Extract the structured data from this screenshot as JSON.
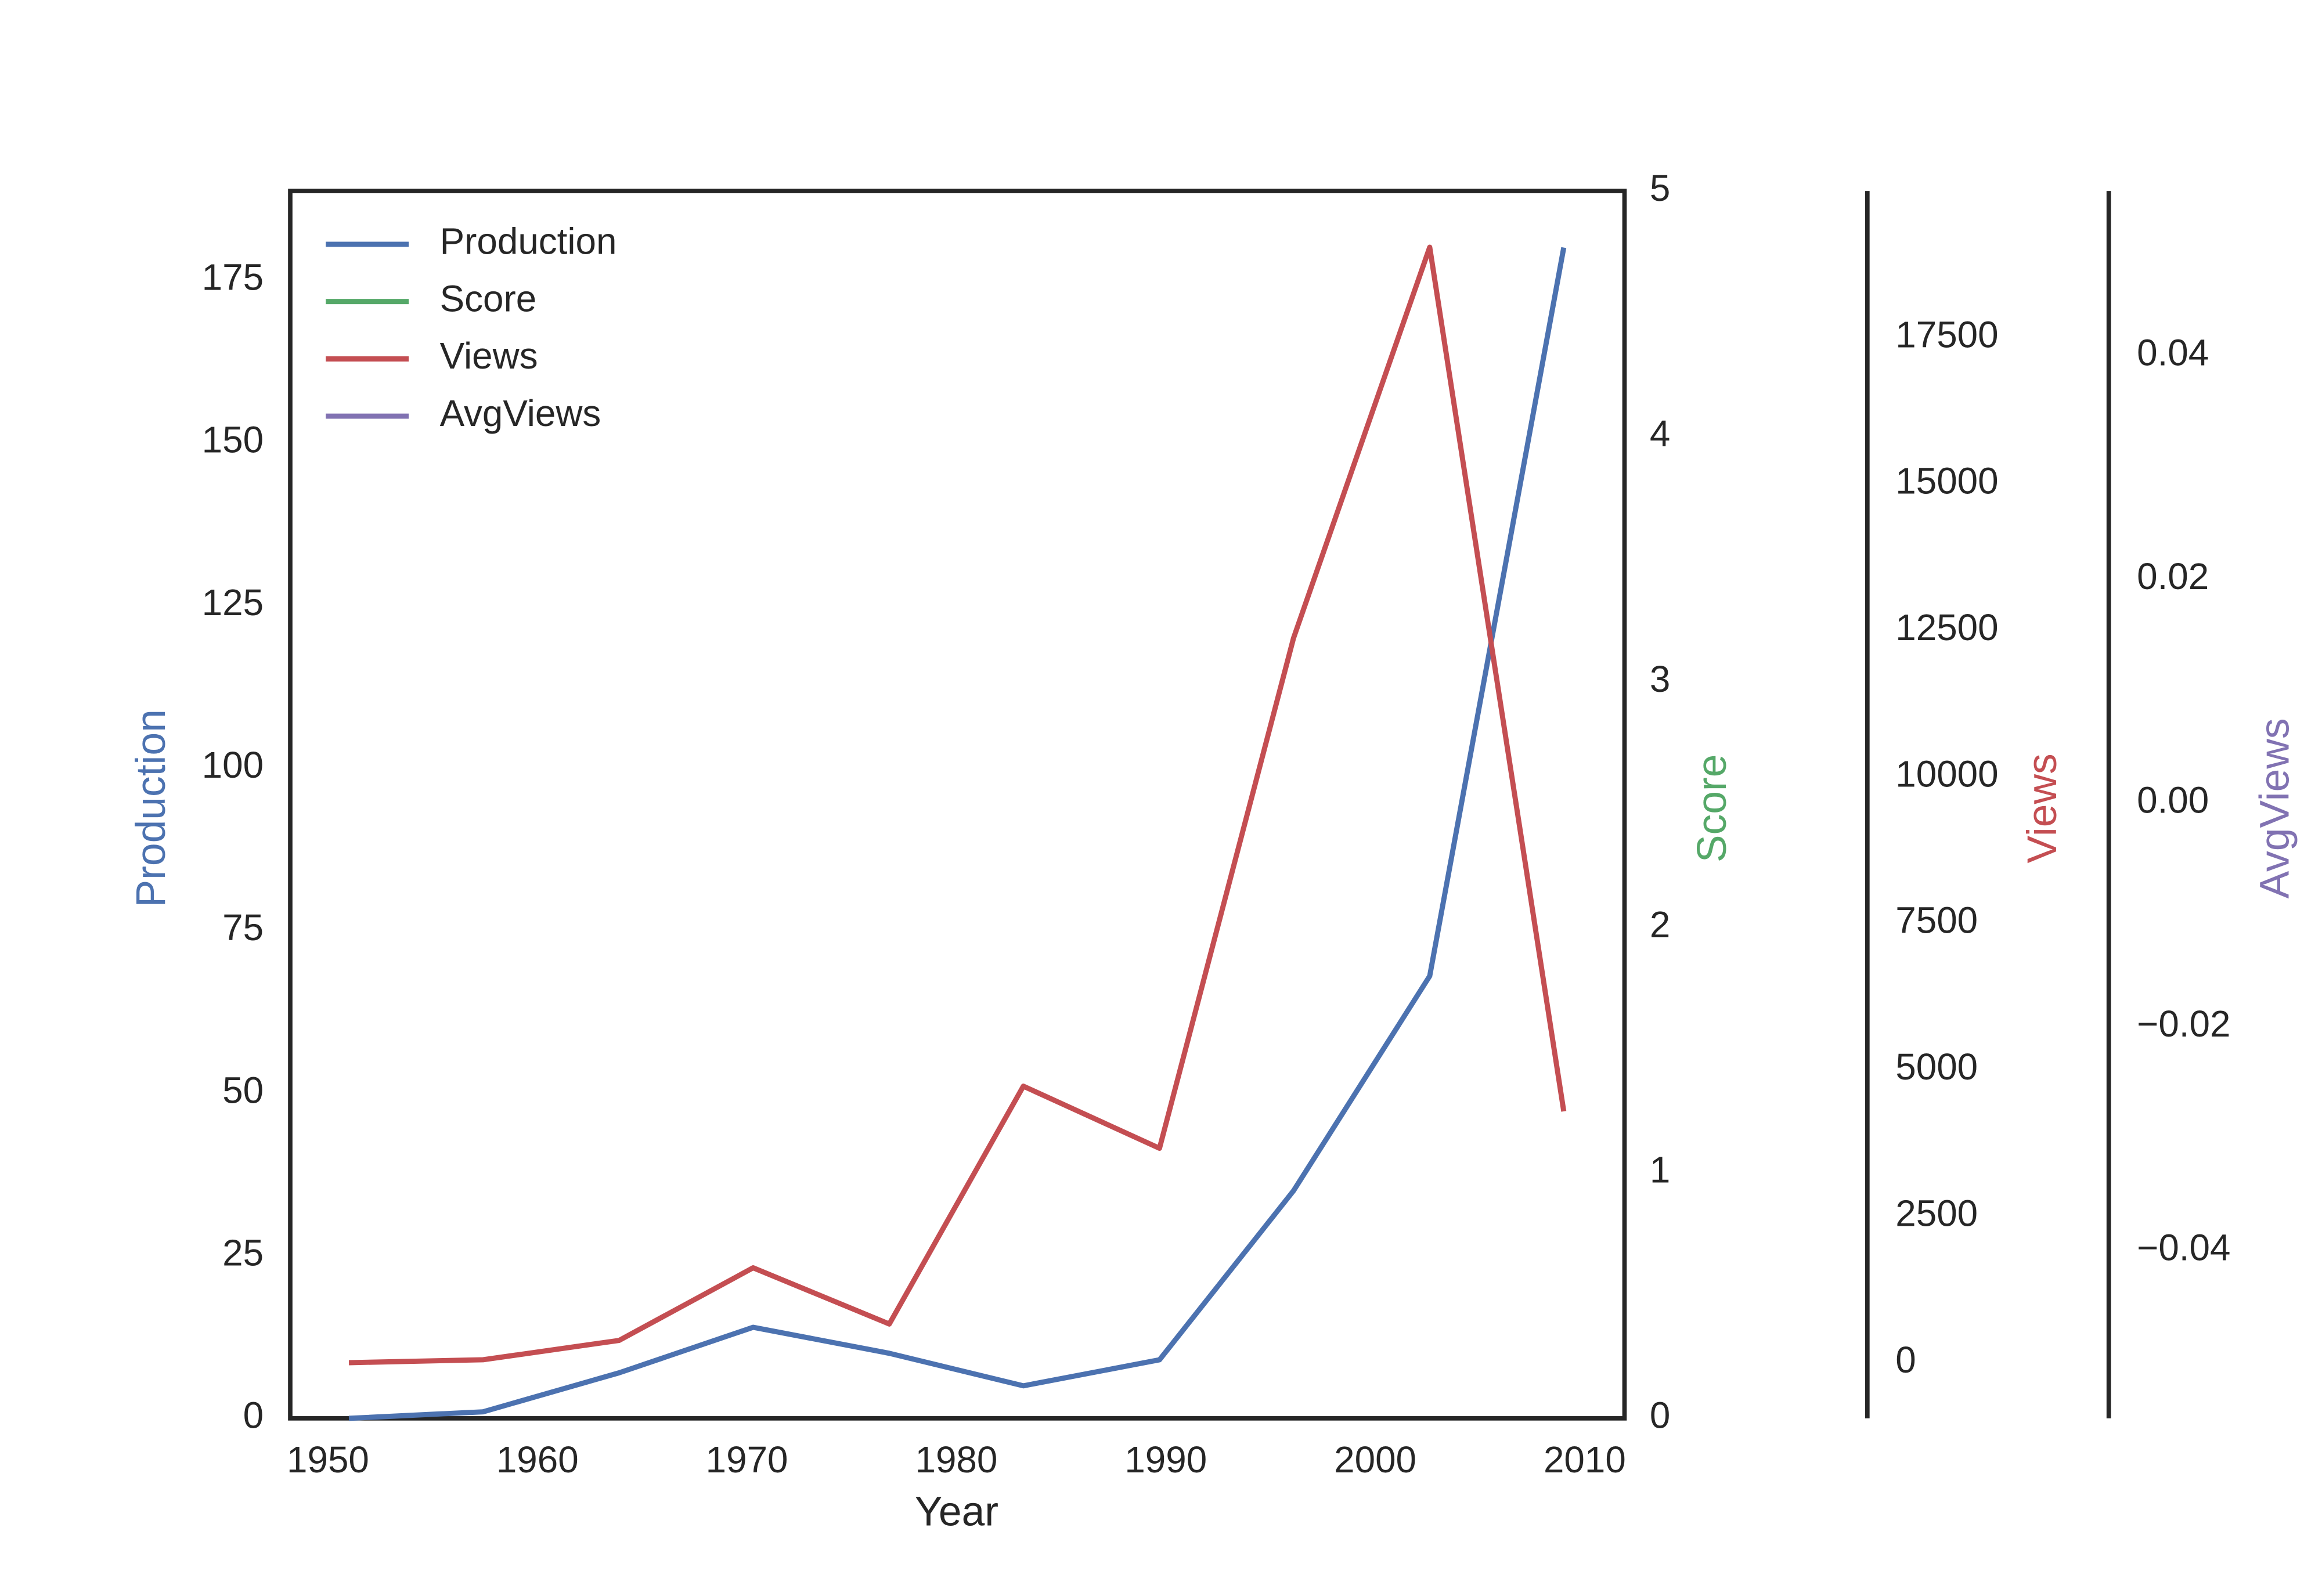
{
  "chart_data": {
    "type": "line",
    "xlabel": "Year",
    "ylabel": "Production",
    "y2label": "Score",
    "y3label": "Views",
    "y4label": "AvgViews",
    "x": [
      1951,
      1957.4,
      1963.9,
      1970.3,
      1976.8,
      1983.2,
      1989.7,
      1996.1,
      2002.6,
      2009
    ],
    "series": [
      {
        "name": "Production",
        "color": "#4c72b0",
        "axis": "y",
        "values": [
          0,
          1,
          7,
          14,
          10,
          5,
          9,
          35,
          68,
          180
        ]
      },
      {
        "name": "Score",
        "color": "#55a868",
        "axis": "y2",
        "values": [
          null,
          null,
          null,
          null,
          null,
          null,
          null,
          null,
          null,
          null
        ]
      },
      {
        "name": "Views",
        "color": "#c44e52",
        "axis": "y3",
        "values": [
          0,
          50,
          380,
          1620,
          660,
          4720,
          3660,
          12370,
          19040,
          4290
        ]
      },
      {
        "name": "AvgViews",
        "color": "#8172b2",
        "axis": "y4",
        "values": [
          null,
          null,
          null,
          null,
          null,
          null,
          null,
          null,
          null,
          null
        ]
      }
    ],
    "xlim": [
      1948.2,
      2011.9
    ],
    "xticks": [
      1950,
      1960,
      1970,
      1980,
      1990,
      2000,
      2010
    ],
    "ylim": [
      0,
      188.7
    ],
    "yticks": [
      0,
      25,
      50,
      75,
      100,
      125,
      150,
      175
    ],
    "y2lim": [
      0,
      5
    ],
    "y2ticks": [
      0,
      1,
      2,
      3,
      4,
      5
    ],
    "y3lim": [
      -950,
      20000
    ],
    "y3ticks": [
      0,
      2500,
      5000,
      7500,
      10000,
      12500,
      15000,
      17500
    ],
    "y4lim": [
      -0.055,
      0.0547
    ],
    "y4ticks": [
      {
        "value": -0.04,
        "label": "−0.04"
      },
      {
        "value": -0.02,
        "label": "−0.02"
      },
      {
        "value": 0,
        "label": "0.00"
      },
      {
        "value": 0.02,
        "label": "0.02"
      },
      {
        "value": 0.04,
        "label": "0.04"
      }
    ],
    "legend": "upper left",
    "grid": false
  }
}
